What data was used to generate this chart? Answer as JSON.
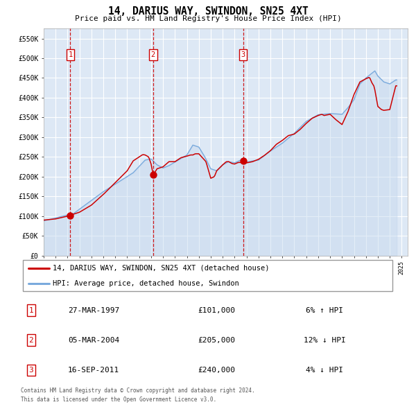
{
  "title": "14, DARIUS WAY, SWINDON, SN25 4XT",
  "subtitle": "Price paid vs. HM Land Registry's House Price Index (HPI)",
  "legend_label_red": "14, DARIUS WAY, SWINDON, SN25 4XT (detached house)",
  "legend_label_blue": "HPI: Average price, detached house, Swindon",
  "footer_line1": "Contains HM Land Registry data © Crown copyright and database right 2024.",
  "footer_line2": "This data is licensed under the Open Government Licence v3.0.",
  "xlim": [
    1995.0,
    2025.5
  ],
  "ylim": [
    0,
    575000
  ],
  "yticks": [
    0,
    50000,
    100000,
    150000,
    200000,
    250000,
    300000,
    350000,
    400000,
    450000,
    500000,
    550000
  ],
  "ytick_labels": [
    "£0",
    "£50K",
    "£100K",
    "£150K",
    "£200K",
    "£250K",
    "£300K",
    "£350K",
    "£400K",
    "£450K",
    "£500K",
    "£550K"
  ],
  "sale_dates": [
    1997.23,
    2004.17,
    2011.71
  ],
  "sale_prices": [
    101000,
    205000,
    240000
  ],
  "sale_labels": [
    "1",
    "2",
    "3"
  ],
  "sale_label_info": [
    {
      "num": "1",
      "date": "27-MAR-1997",
      "price": "£101,000",
      "hpi_note": "6% ↑ HPI"
    },
    {
      "num": "2",
      "date": "05-MAR-2004",
      "price": "£205,000",
      "hpi_note": "12% ↓ HPI"
    },
    {
      "num": "3",
      "date": "16-SEP-2011",
      "price": "£240,000",
      "hpi_note": "4% ↓ HPI"
    }
  ],
  "plot_bg_color": "#dde8f5",
  "grid_color": "#ffffff",
  "red_line_color": "#cc0000",
  "blue_line_color": "#7aaadd",
  "blue_fill_color": "#c5d8ee",
  "red_dot_color": "#cc0000",
  "dashed_line_color": "#cc0000"
}
